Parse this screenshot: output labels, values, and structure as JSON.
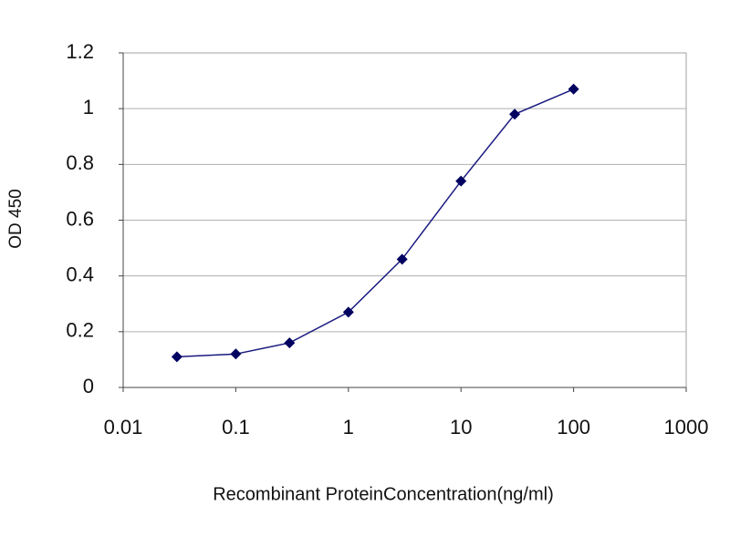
{
  "chart_data": {
    "type": "line",
    "y_label": "OD 450",
    "x_label": "Recombinant ProteinConcentration(ng/ml)",
    "x": [
      0.03,
      0.1,
      0.3,
      1,
      3,
      10,
      30,
      100
    ],
    "values": [
      0.11,
      0.12,
      0.16,
      0.27,
      0.46,
      0.74,
      0.98,
      1.07
    ],
    "color": "#1a1a80",
    "marker_color": "#000060",
    "xscale": "log",
    "xlim": [
      0.01,
      1000
    ],
    "xticks": [
      0.01,
      0.1,
      1,
      10,
      100,
      1000
    ],
    "ylim": [
      0,
      1.2
    ],
    "yticks": [
      0,
      0.2,
      0.4,
      0.6,
      0.8,
      1,
      1.2
    ],
    "grid": true
  }
}
